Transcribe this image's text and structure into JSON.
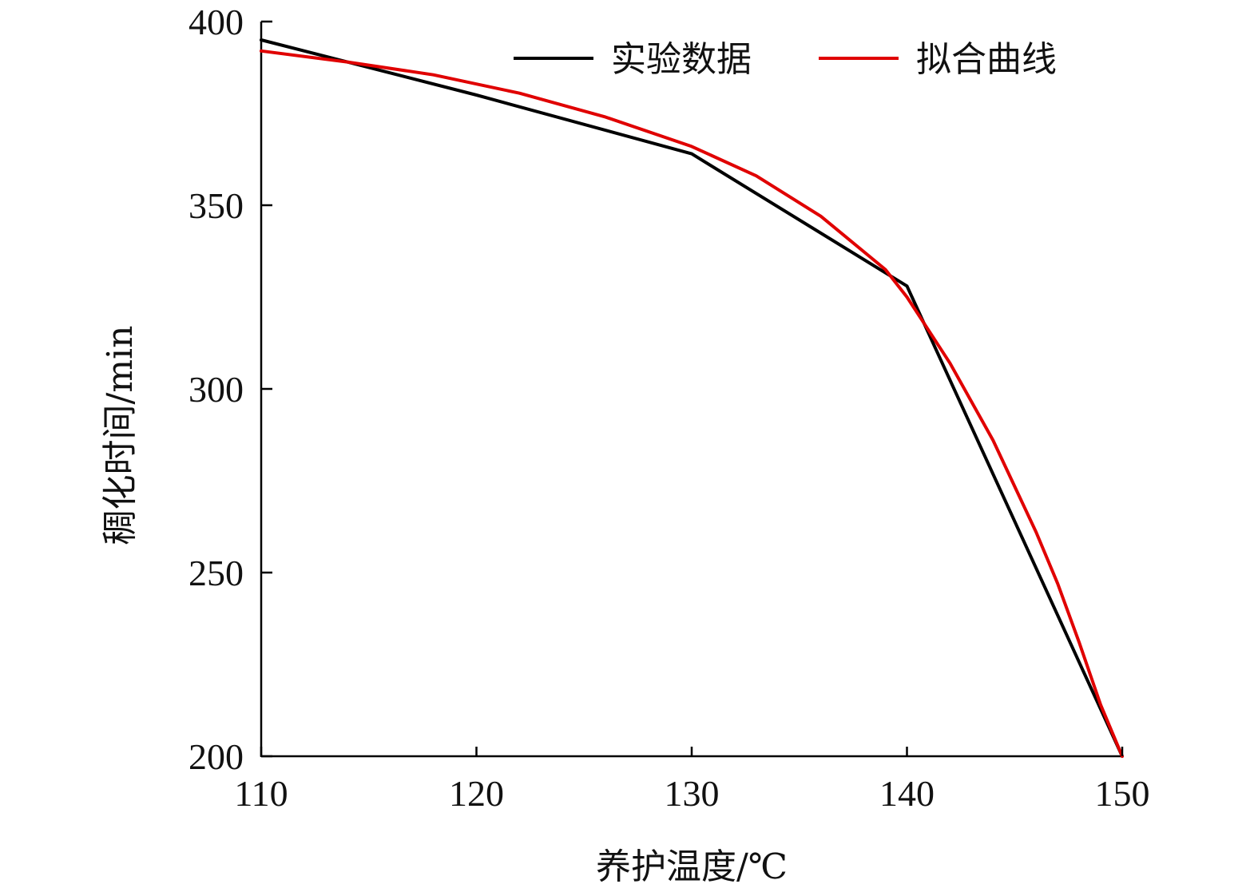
{
  "chart_data": {
    "type": "line",
    "xlabel": "养护温度/℃",
    "ylabel": "稠化时间/min",
    "xlim": [
      110,
      150
    ],
    "ylim": [
      200,
      400
    ],
    "xticks": [
      "110",
      "120",
      "130",
      "140",
      "150"
    ],
    "yticks": [
      "200",
      "250",
      "300",
      "350",
      "400"
    ],
    "legend_position": "top-right",
    "grid": false,
    "series": [
      {
        "name": "实验数据",
        "color": "#000000",
        "x": [
          110,
          120,
          130,
          140,
          150
        ],
        "y": [
          395,
          380,
          364,
          328,
          200
        ]
      },
      {
        "name": "拟合曲线",
        "color": "#e00000",
        "x": [
          110,
          114,
          118,
          122,
          126,
          130,
          133,
          136,
          139,
          140,
          142,
          144,
          146,
          147,
          148,
          149,
          150
        ],
        "y": [
          392,
          389,
          385.5,
          380.5,
          374,
          366,
          358,
          347,
          332.5,
          325,
          307,
          286,
          261,
          247,
          231,
          214,
          200
        ]
      }
    ]
  }
}
